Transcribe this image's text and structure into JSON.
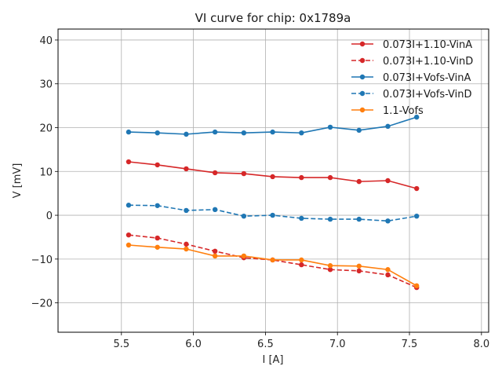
{
  "chart_data": {
    "type": "line",
    "title": "VI curve for chip: 0x1789a",
    "xlabel": "I [A]",
    "ylabel": "V [mV]",
    "xlim": [
      5.06,
      8.05
    ],
    "ylim": [
      -26.7,
      42.5
    ],
    "grid": true,
    "legend_position": "top-right",
    "xticks": [
      5.5,
      6.0,
      6.5,
      7.0,
      7.5,
      8.0
    ],
    "xtick_labels": [
      "5.5",
      "6.0",
      "6.5",
      "7.0",
      "7.5",
      "8.0"
    ],
    "yticks": [
      -20,
      -10,
      0,
      10,
      20,
      30,
      40
    ],
    "ytick_labels": [
      "−20",
      "−10",
      "0",
      "10",
      "20",
      "30",
      "40"
    ],
    "x": [
      5.55,
      5.75,
      5.95,
      6.15,
      6.35,
      6.55,
      6.75,
      6.95,
      7.15,
      7.35,
      7.55
    ],
    "series": [
      {
        "name": "0.073I+1.10-VinA",
        "color": "#d62728",
        "style": "solid",
        "values": [
          12.2,
          11.5,
          10.6,
          9.7,
          9.5,
          8.8,
          8.6,
          8.6,
          7.7,
          7.9,
          6.1
        ]
      },
      {
        "name": "0.073I+1.10-VinD",
        "color": "#d62728",
        "style": "dashed",
        "values": [
          -4.5,
          -5.2,
          -6.6,
          -8.2,
          -9.7,
          -10.2,
          -11.3,
          -12.4,
          -12.7,
          -13.6,
          -16.5
        ]
      },
      {
        "name": "0.073I+Vofs-VinA",
        "color": "#1f77b4",
        "style": "solid",
        "values": [
          19.0,
          18.8,
          18.5,
          19.0,
          18.8,
          19.0,
          18.8,
          20.1,
          19.4,
          20.3,
          22.4
        ]
      },
      {
        "name": "0.073I+Vofs-VinD",
        "color": "#1f77b4",
        "style": "dashed",
        "values": [
          2.3,
          2.2,
          1.1,
          1.3,
          -0.2,
          0.0,
          -0.7,
          -0.9,
          -0.9,
          -1.3,
          -0.2
        ]
      },
      {
        "name": "1.1-Vofs",
        "color": "#ff7f0e",
        "style": "solid",
        "values": [
          -6.8,
          -7.3,
          -7.7,
          -9.3,
          -9.3,
          -10.2,
          -10.2,
          -11.5,
          -11.6,
          -12.4,
          -16.1
        ]
      }
    ]
  }
}
